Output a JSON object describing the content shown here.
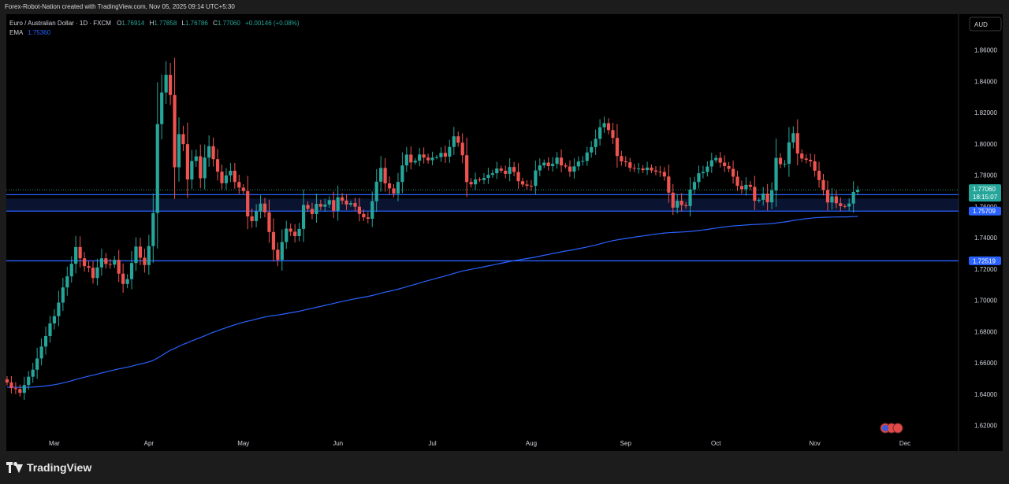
{
  "credit": "Forex-Robot-Nation created with TradingView.com, Nov 05, 2025 09:14 UTC+5:30",
  "footer": {
    "brand": "TradingView"
  },
  "currency_button": "AUD",
  "legend": {
    "symbol": "Euro / Australian Dollar · 1D · FXCM",
    "o_label": "O",
    "o": "1.76914",
    "h_label": "H",
    "h": "1.77858",
    "l_label": "L",
    "l": "1.76786",
    "c_label": "C",
    "c": "1.77060",
    "change": "+0.00146 (+0.08%)",
    "ema_label": "EMA",
    "ema": "1.75360"
  },
  "colors": {
    "up": "#26a69a",
    "down": "#ef5350",
    "ema": "#2962ff",
    "level": "#2962ff",
    "bg": "#000000"
  },
  "chart_data": {
    "type": "candlestick",
    "title": "Euro / Australian Dollar · 1D · FXCM",
    "ylim": [
      1.61,
      1.87
    ],
    "yticks": [
      1.62,
      1.64,
      1.66,
      1.68,
      1.7,
      1.72,
      1.74,
      1.76,
      1.78,
      1.8,
      1.82,
      1.84,
      1.86
    ],
    "ytick_labels": [
      "1.62000",
      "1.64000",
      "1.66000",
      "1.68000",
      "1.70000",
      "1.72000",
      "1.74000",
      "1.76000",
      "1.78000",
      "1.80000",
      "1.82000",
      "1.84000",
      "1.86000"
    ],
    "xticks": [
      {
        "label": "Mar",
        "index": 11
      },
      {
        "label": "Apr",
        "index": 33
      },
      {
        "label": "May",
        "index": 55
      },
      {
        "label": "Jun",
        "index": 77
      },
      {
        "label": "Jul",
        "index": 99
      },
      {
        "label": "Aug",
        "index": 122
      },
      {
        "label": "Sep",
        "index": 144
      },
      {
        "label": "Oct",
        "index": 165
      },
      {
        "label": "Nov",
        "index": 188
      },
      {
        "label": "Dec",
        "index": 209
      }
    ],
    "closes": [
      1.6474,
      1.6438,
      1.6432,
      1.6408,
      1.6458,
      1.6511,
      1.6556,
      1.6628,
      1.6704,
      1.6771,
      1.6852,
      1.6898,
      1.6985,
      1.7082,
      1.7153,
      1.7233,
      1.734,
      1.7268,
      1.7218,
      1.7208,
      1.7142,
      1.721,
      1.7268,
      1.7232,
      1.7228,
      1.7258,
      1.717,
      1.7104,
      1.7135,
      1.7238,
      1.7343,
      1.7272,
      1.7225,
      1.7346,
      1.7558,
      1.8126,
      1.8328,
      1.8441,
      1.8312,
      1.785,
      1.8062,
      1.7998,
      1.7772,
      1.789,
      1.792,
      1.778,
      1.7912,
      1.7985,
      1.7902,
      1.7822,
      1.7748,
      1.7798,
      1.7828,
      1.7756,
      1.772,
      1.7698,
      1.7536,
      1.7506,
      1.7568,
      1.7618,
      1.7562,
      1.7436,
      1.7323,
      1.7258,
      1.7372,
      1.7458,
      1.7438,
      1.741,
      1.7456,
      1.7609,
      1.7584,
      1.7551,
      1.7616,
      1.7598,
      1.7612,
      1.764,
      1.7572,
      1.7658,
      1.7637,
      1.7612,
      1.7621,
      1.7598,
      1.7552,
      1.753,
      1.7521,
      1.7633,
      1.7758,
      1.7846,
      1.7747,
      1.7715,
      1.7682,
      1.7756,
      1.7862,
      1.7931,
      1.7881,
      1.7892,
      1.7932,
      1.7912,
      1.7895,
      1.7912,
      1.7915,
      1.7942,
      1.7918,
      1.798,
      1.8048,
      1.8007,
      1.7927,
      1.7756,
      1.7741,
      1.7772,
      1.7768,
      1.7782,
      1.7802,
      1.7812,
      1.7842,
      1.7828,
      1.7808,
      1.7852,
      1.782,
      1.7761,
      1.774,
      1.7732,
      1.7731,
      1.783,
      1.7862,
      1.788,
      1.7858,
      1.7872,
      1.7912,
      1.7862,
      1.7855,
      1.7822,
      1.7856,
      1.7887,
      1.789,
      1.7945,
      1.7979,
      1.8032,
      1.8106,
      1.8132,
      1.8088,
      1.8038,
      1.7922,
      1.7888,
      1.7882,
      1.7846,
      1.7841,
      1.7842,
      1.7832,
      1.7848,
      1.783,
      1.7822,
      1.782,
      1.7791,
      1.7688,
      1.7592,
      1.7636,
      1.7608,
      1.7602,
      1.7708,
      1.7756,
      1.7812,
      1.782,
      1.7855,
      1.7895,
      1.791,
      1.788,
      1.7858,
      1.784,
      1.779,
      1.7731,
      1.771,
      1.7738,
      1.7725,
      1.7636,
      1.7642,
      1.7682,
      1.7626,
      1.7702,
      1.791,
      1.787,
      1.7872,
      1.8009,
      1.8068,
      1.7938,
      1.7906,
      1.7898,
      1.7888,
      1.7828,
      1.7768,
      1.7705,
      1.7625,
      1.7664,
      1.762,
      1.7602,
      1.7599,
      1.7618,
      1.7692,
      1.7706
    ],
    "ema": {
      "name": "EMA",
      "last": 1.7536
    },
    "levels": [
      {
        "value": 1.7675,
        "label": ""
      },
      {
        "value": 1.757,
        "label": "1.75709"
      },
      {
        "value": 1.7252,
        "label": "1.72519"
      }
    ],
    "zone": [
      1.757,
      1.765
    ],
    "last_price": {
      "value": 1.7706,
      "label": "1.77060",
      "countdown": "18:15:07"
    },
    "grid": false
  }
}
